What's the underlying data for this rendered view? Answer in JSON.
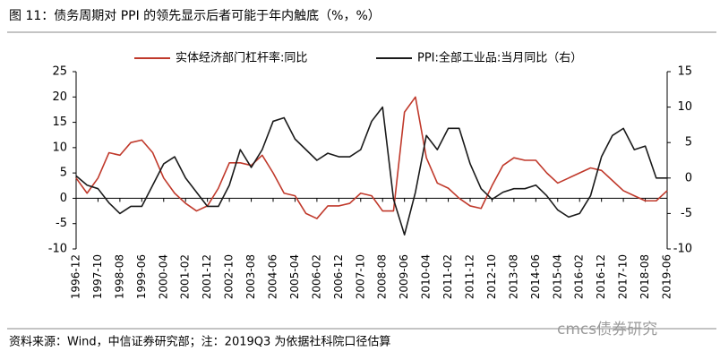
{
  "chart_data": {
    "type": "line",
    "title": "图 11：债务周期对 PPI 的领先显示后者可能于年内触底（%，%）",
    "source": "资料来源：Wind，中信证券研究部；注：2019Q3 为依据社科院口径估算",
    "watermark": "cmcs债券研究",
    "legend": "top",
    "categories": [
      "1996-12",
      null,
      "1997-10",
      null,
      "1998-08",
      null,
      "1999-06",
      null,
      "2000-04",
      null,
      "2001-02",
      null,
      "2001-12",
      null,
      "2002-10",
      null,
      "2003-08",
      null,
      "2004-06",
      null,
      "2005-04",
      null,
      "2006-02",
      null,
      "2006-12",
      null,
      "2007-10",
      null,
      "2008-08",
      null,
      "2009-06",
      null,
      "2010-04",
      null,
      "2011-02",
      null,
      "2011-12",
      null,
      "2012-10",
      null,
      "2013-08",
      null,
      "2014-06",
      null,
      "2015-04",
      null,
      "2016-02",
      null,
      "2016-12",
      null,
      "2017-10",
      null,
      "2018-08",
      null,
      "2019-06"
    ],
    "series": [
      {
        "name": "实体经济部门杠杆率:同比",
        "color": "#c0392b",
        "axis": "y",
        "values": [
          4,
          1,
          4,
          9,
          8.5,
          11,
          11.5,
          9,
          4,
          1,
          -1,
          -2.5,
          -1.5,
          2,
          7,
          7,
          6.5,
          8.5,
          5,
          1,
          0.5,
          -3,
          -4,
          -1.5,
          -1.5,
          -1,
          1,
          0.5,
          -2.5,
          -2.5,
          17,
          20,
          8,
          3,
          2,
          0,
          -1.5,
          -2,
          2.5,
          6.5,
          8,
          7.5,
          7.5,
          5,
          3,
          4,
          5,
          6,
          5.5,
          3.5,
          1.5,
          0.5,
          -0.5,
          -0.5,
          1.5
        ]
      },
      {
        "name": "PPI:全部工业品:当月同比（右）",
        "color": "#1a1a1a",
        "axis": "y2",
        "values": [
          0.3,
          -1,
          -1.5,
          -3.5,
          -5,
          -4,
          -4,
          -1,
          2,
          3,
          0,
          -2,
          -4,
          -4,
          -1,
          4,
          1.5,
          4,
          8,
          8.5,
          5.5,
          4,
          2.5,
          3.5,
          3,
          3,
          4,
          8,
          10,
          -3,
          -8,
          -2,
          6,
          4,
          7,
          7,
          2,
          -1.5,
          -3,
          -2,
          -1.5,
          -1.5,
          -1,
          -2.5,
          -4.5,
          -5.5,
          -5,
          -2.5,
          3,
          6,
          7,
          4,
          4.5,
          0,
          0
        ]
      }
    ],
    "ylim": [
      -10,
      25
    ],
    "yticks": [
      -10,
      -5,
      0,
      5,
      10,
      15,
      20,
      25
    ],
    "y2lim": [
      -10,
      15
    ],
    "y2ticks": [
      -10,
      -5,
      0,
      5,
      10,
      15
    ]
  }
}
